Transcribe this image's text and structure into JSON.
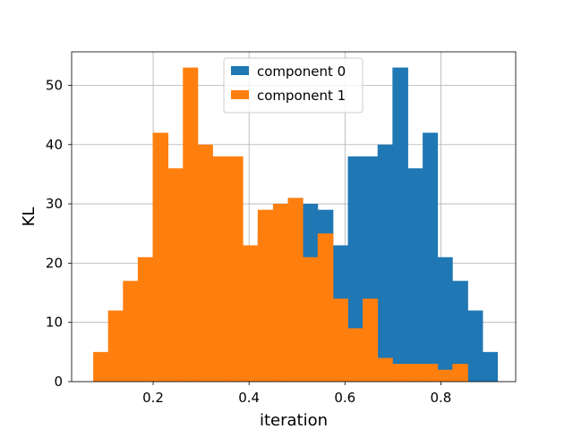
{
  "chart_data": {
    "type": "bar",
    "xlabel": "iteration",
    "ylabel": "KL",
    "xlim": [
      0.03,
      0.956
    ],
    "ylim": [
      0,
      55.65
    ],
    "xticks": [
      0.2,
      0.4,
      0.6,
      0.8
    ],
    "xtick_labels": [
      "0.2",
      "0.4",
      "0.6",
      "0.8"
    ],
    "yticks": [
      0,
      10,
      20,
      30,
      40,
      50
    ],
    "ytick_labels": [
      "0",
      "10",
      "20",
      "30",
      "40",
      "50"
    ],
    "grid": true,
    "legend_position": "top-center",
    "series": [
      {
        "name": "component 0",
        "color": "#1f77b4",
        "bins": [
          [
            0.387,
            0.418,
            23
          ],
          [
            0.418,
            0.45,
            25
          ],
          [
            0.45,
            0.481,
            30
          ],
          [
            0.481,
            0.512,
            31
          ],
          [
            0.512,
            0.543,
            30
          ],
          [
            0.543,
            0.575,
            29
          ],
          [
            0.575,
            0.606,
            23
          ],
          [
            0.606,
            0.637,
            38
          ],
          [
            0.637,
            0.668,
            38
          ],
          [
            0.668,
            0.699,
            40
          ],
          [
            0.699,
            0.731,
            53
          ],
          [
            0.731,
            0.762,
            36
          ],
          [
            0.762,
            0.793,
            42
          ],
          [
            0.793,
            0.824,
            21
          ],
          [
            0.824,
            0.856,
            17
          ],
          [
            0.856,
            0.887,
            12
          ],
          [
            0.887,
            0.918,
            5
          ]
        ]
      },
      {
        "name": "component 1",
        "color": "#ff7f0e",
        "bins": [
          [
            0.075,
            0.106,
            5
          ],
          [
            0.106,
            0.137,
            12
          ],
          [
            0.137,
            0.168,
            17
          ],
          [
            0.168,
            0.199,
            21
          ],
          [
            0.199,
            0.231,
            42
          ],
          [
            0.231,
            0.262,
            36
          ],
          [
            0.262,
            0.293,
            53
          ],
          [
            0.293,
            0.324,
            40
          ],
          [
            0.324,
            0.356,
            38
          ],
          [
            0.356,
            0.387,
            38
          ],
          [
            0.387,
            0.418,
            23
          ],
          [
            0.418,
            0.45,
            29
          ],
          [
            0.45,
            0.481,
            30
          ],
          [
            0.481,
            0.512,
            31
          ],
          [
            0.512,
            0.543,
            21
          ],
          [
            0.543,
            0.575,
            25
          ],
          [
            0.575,
            0.606,
            14
          ],
          [
            0.606,
            0.637,
            9
          ],
          [
            0.637,
            0.668,
            14
          ],
          [
            0.668,
            0.699,
            4
          ],
          [
            0.699,
            0.731,
            3
          ],
          [
            0.731,
            0.762,
            3
          ],
          [
            0.762,
            0.793,
            3
          ],
          [
            0.793,
            0.824,
            2
          ],
          [
            0.824,
            0.856,
            3
          ]
        ]
      }
    ]
  }
}
